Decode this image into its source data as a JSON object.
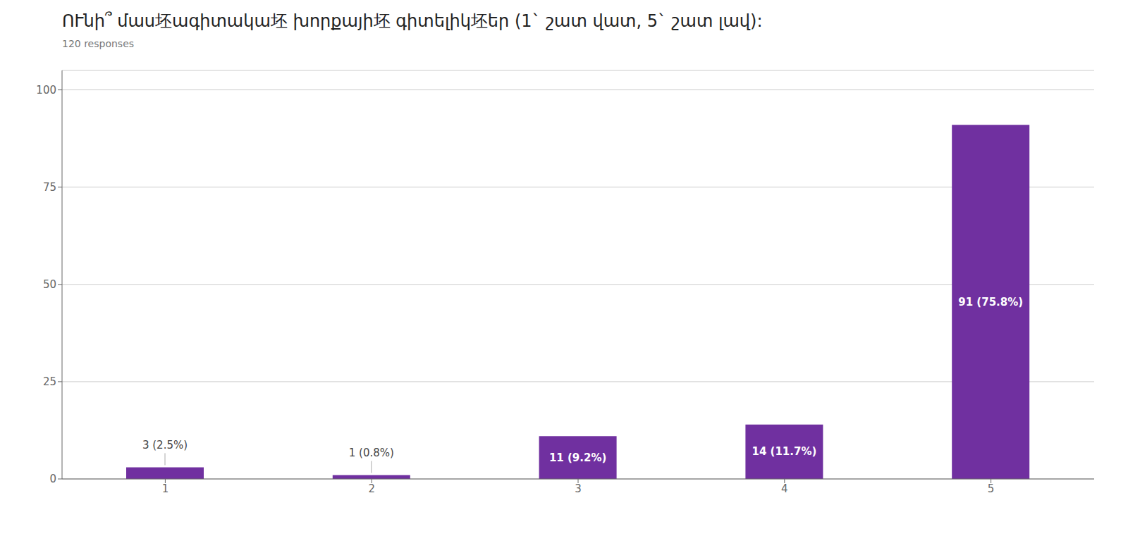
{
  "chart_data": {
    "type": "bar",
    "title": "ՈՒնի՞ մաս坯ագիտակա坯 խորքայի坯 գիտելիկ坯եր (1` շատ վատ, 5` շատ լավ):",
    "subtitle": "120 responses",
    "categories": [
      "1",
      "2",
      "3",
      "4",
      "5"
    ],
    "values": [
      3,
      1,
      11,
      14,
      91
    ],
    "value_labels": [
      "3 (2.5%)",
      "1 (0.8%)",
      "11 (9.2%)",
      "14 (11.7%)",
      "91 (75.8%)"
    ],
    "color": "#7030A0",
    "ylim": [
      0,
      105
    ],
    "yticks": [
      0,
      25,
      50,
      75,
      100
    ],
    "grid": true,
    "data_labels": true
  }
}
